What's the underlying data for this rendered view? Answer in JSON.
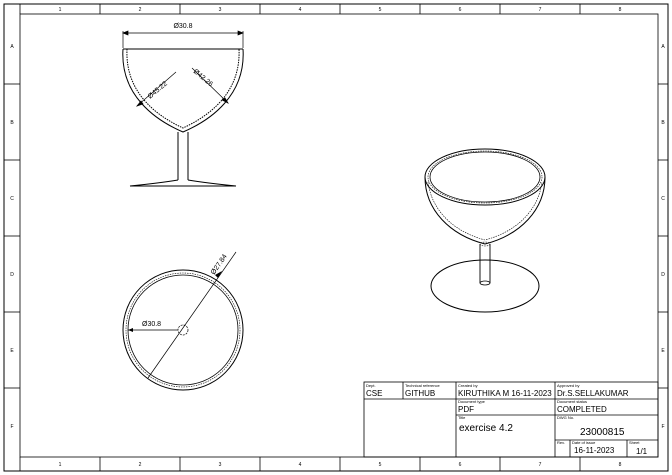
{
  "zones": {
    "columns": [
      "1",
      "2",
      "3",
      "4",
      "5",
      "6",
      "7",
      "8"
    ],
    "rows": [
      "A",
      "B",
      "C",
      "D",
      "E",
      "F"
    ]
  },
  "dimensions": {
    "front_top_width": "Ø30.8",
    "front_inner_1": "Ø45.22",
    "front_inner_2": "Ø42.26",
    "top_outer": "Ø27.84",
    "top_inner": "Ø30.8"
  },
  "title_block": {
    "dept_label": "Dept.",
    "dept": "CSE",
    "tech_ref_label": "Technical reference",
    "tech_ref": "GITHUB",
    "created_by_label": "Created by",
    "created_by": "KIRUTHIKA M  16-11-2023",
    "approved_by_label": "Approved by",
    "approved_by": "Dr.S.SELLAKUMAR",
    "doc_type_label": "Document type",
    "doc_type": "PDF",
    "doc_status_label": "Document status",
    "doc_status": "COMPLETED",
    "title_label": "Title",
    "title": "exercise 4.2",
    "dwg_no_label": "DWG No.",
    "dwg_no": "23000815",
    "rev_label": "Rev.",
    "rev": "",
    "date_label": "Date of issue",
    "date": "16-11-2023",
    "sheet_label": "Sheet",
    "sheet": "1/1"
  }
}
